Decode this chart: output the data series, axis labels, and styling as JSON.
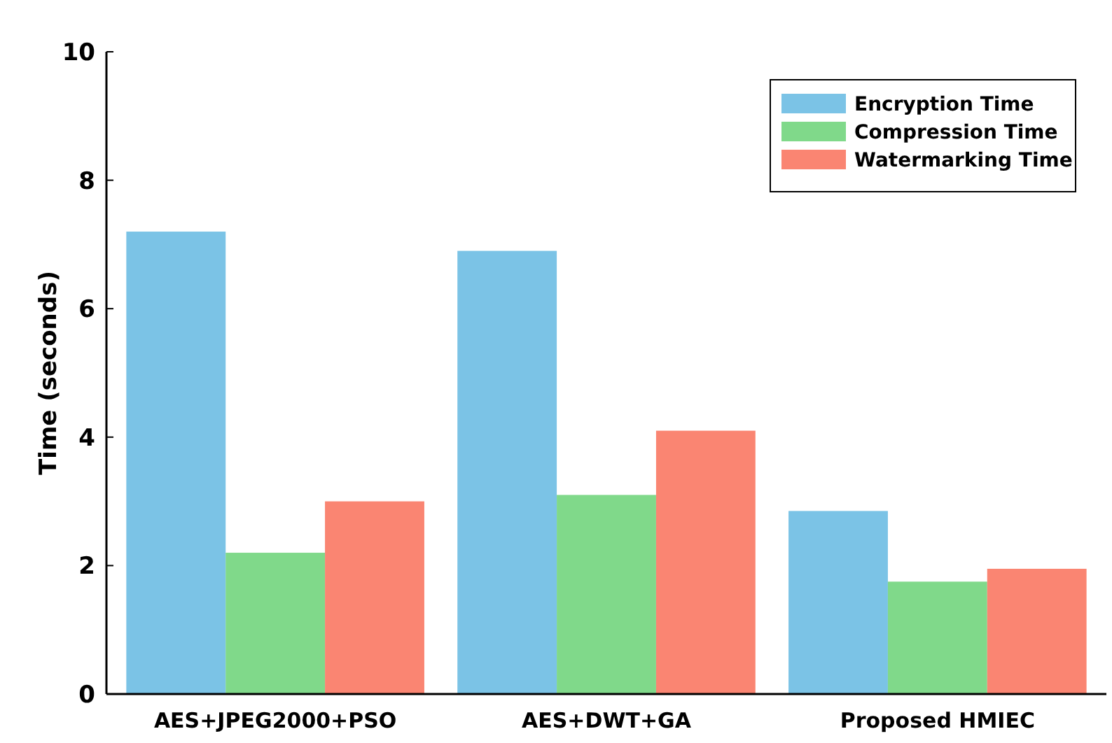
{
  "chart_data": {
    "type": "bar",
    "ylabel": "Time (seconds)",
    "categories": [
      "AES+JPEG2000+PSO",
      "AES+DWT+GA",
      "Proposed HMIEC"
    ],
    "series": [
      {
        "name": "Encryption Time",
        "color": "#7bc3e6",
        "values": [
          7.2,
          6.9,
          2.85
        ]
      },
      {
        "name": "Compression Time",
        "color": "#80d98a",
        "values": [
          2.2,
          3.1,
          1.75
        ]
      },
      {
        "name": "Watermarking Time",
        "color": "#fa8572",
        "values": [
          3.0,
          4.1,
          1.95
        ]
      }
    ],
    "ylim": [
      0,
      10
    ],
    "yticks": [
      0,
      2,
      4,
      6,
      8,
      10
    ],
    "legend": "top right",
    "grid": false
  }
}
